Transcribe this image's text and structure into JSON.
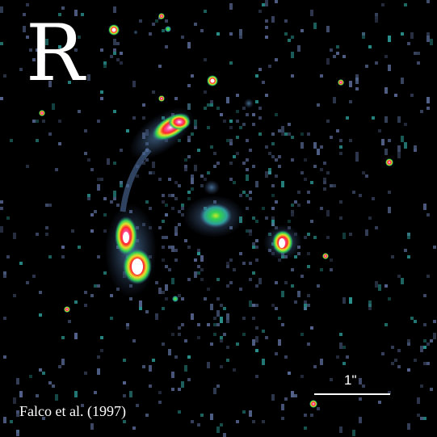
{
  "figure": {
    "band_label": "R",
    "credit": "Falco et al. (1997)",
    "scale_bar_label": "1\""
  },
  "colors": {
    "background": "#000000",
    "noise_blue": "#5b6d99",
    "noise_teal": "#2e9f9a",
    "glow_green": "#2fcf52",
    "glow_yellow": "#e7e02a",
    "glow_red": "#ff2a2a",
    "core_white": "#ffffff"
  }
}
